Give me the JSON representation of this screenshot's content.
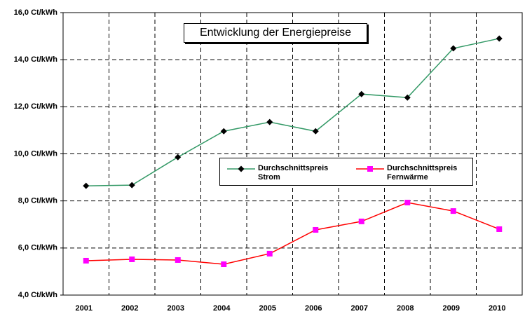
{
  "chart_data": {
    "type": "line",
    "title": "Entwicklung der Energiepreise",
    "categories": [
      "2001",
      "2002",
      "2003",
      "2004",
      "2005",
      "2006",
      "2007",
      "2008",
      "2009",
      "2010"
    ],
    "series": [
      {
        "name": "Durchschnittspreis Strom",
        "color": "#339966",
        "marker_color": "#000000",
        "marker": "diamond",
        "values": [
          8.64,
          8.67,
          9.86,
          10.96,
          11.35,
          10.96,
          12.54,
          12.39,
          14.48,
          14.9
        ]
      },
      {
        "name": "Durchschnittspreis Fernwärme",
        "color": "#ff0000",
        "marker_color": "#ff00ff",
        "marker": "square",
        "values": [
          5.46,
          5.52,
          5.49,
          5.31,
          5.76,
          6.77,
          7.13,
          7.93,
          7.57,
          6.8
        ]
      }
    ],
    "ylim": [
      4,
      16
    ],
    "yticks": [
      {
        "value": 4,
        "label": "4,0 Ct/kWh"
      },
      {
        "value": 6,
        "label": "6,0 Ct/kWh"
      },
      {
        "value": 8,
        "label": "8,0 Ct/kWh"
      },
      {
        "value": 10,
        "label": "10,0 Ct/kWh"
      },
      {
        "value": 12,
        "label": "12,0 Ct/kWh"
      },
      {
        "value": 14,
        "label": "14,0 Ct/kWh"
      },
      {
        "value": 16,
        "label": "16,0 Ct/kWh"
      }
    ],
    "grid": true
  }
}
